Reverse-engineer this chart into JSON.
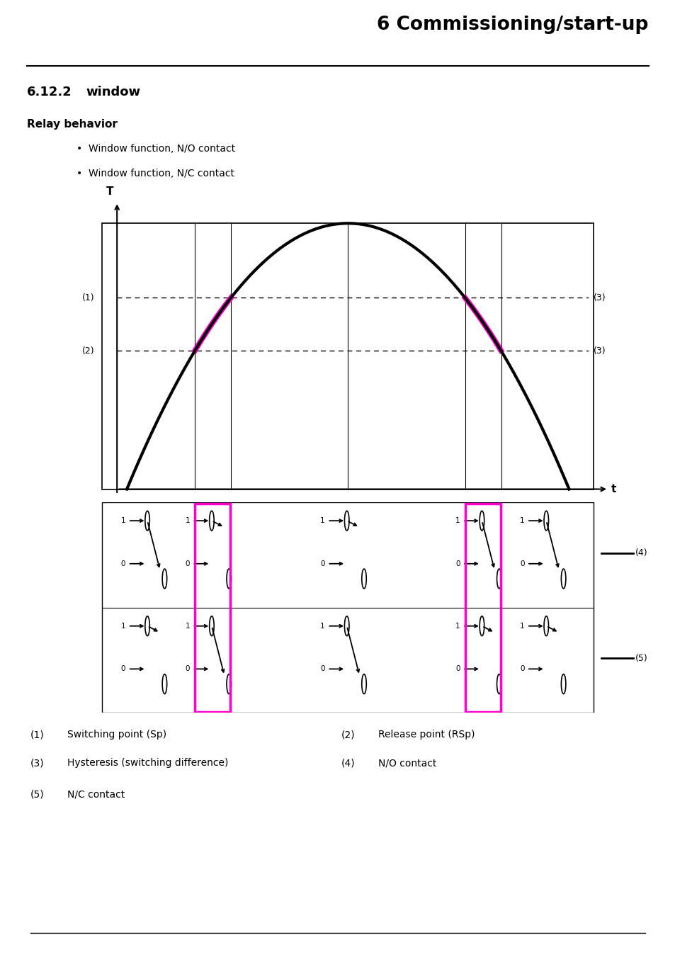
{
  "title": "6 Commissioning/start-up",
  "section": "6.12.2",
  "section2": "window",
  "relay_behavior": "Relay behavior",
  "bullet1": "Window function, N/O contact",
  "bullet2": "Window function, N/C contact",
  "pink_color": "#FF00CC",
  "black_color": "#000000",
  "magenta_box_color": "#FF00CC",
  "legend_items": [
    [
      "(1)",
      "Switching point (Sp)",
      0.0,
      "(2)",
      "Release point (RSp)",
      0.5
    ],
    [
      "(3)",
      "Hysteresis (switching difference)",
      0.0,
      "(4)",
      "N/O contact",
      0.5
    ],
    [
      "(5)",
      "N/C contact",
      0.0,
      "",
      "",
      -1
    ]
  ]
}
